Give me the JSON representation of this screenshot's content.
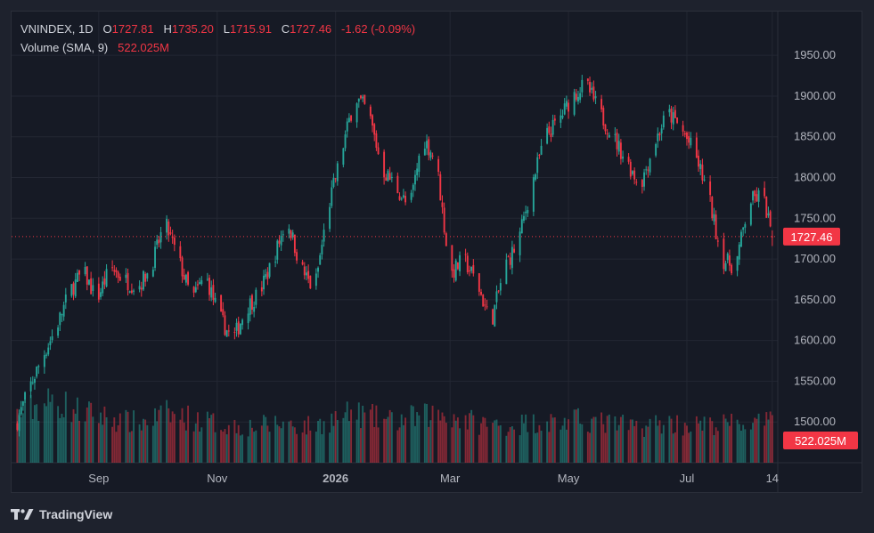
{
  "legend": {
    "symbol": "VNINDEX",
    "interval": "1D",
    "open_label": "O",
    "open": "1727.81",
    "high_label": "H",
    "high": "1735.20",
    "low_label": "L",
    "low": "1715.91",
    "close_label": "C",
    "close": "1727.46",
    "change": "-1.62 (-0.09%)",
    "volume_label": "Volume (SMA, 9)",
    "volume_value": "522.025M"
  },
  "footer": {
    "brand": "TradingView",
    "logo_icon": "tradingview-logo-icon"
  },
  "colors": {
    "up": "#26a69a",
    "down": "#f23645",
    "background": "#161a25",
    "text": "#d1d4dc"
  },
  "chart_data": {
    "type": "candlestick",
    "title": "",
    "xlabel": "",
    "ylabel": "",
    "ylim": [
      1450,
      1960
    ],
    "y_ticks": [
      1500,
      1550,
      1600,
      1650,
      1700,
      1750,
      1800,
      1850,
      1900,
      1950
    ],
    "y_tick_labels": [
      "1500.00",
      "1550.00",
      "1600.00",
      "1650.00",
      "1700.00",
      "1750.00",
      "1800.00",
      "1850.00",
      "1900.00",
      "1950.00"
    ],
    "x_ticks": [
      {
        "label": "Sep",
        "date": "2025-09-01"
      },
      {
        "label": "Nov",
        "date": "2025-11-01"
      },
      {
        "label": "2026",
        "date": "2026-01-01"
      },
      {
        "label": "Mar",
        "date": "2026-03-01"
      },
      {
        "label": "May",
        "date": "2026-05-01"
      },
      {
        "label": "Jul",
        "date": "2026-07-01"
      },
      {
        "label": "14",
        "date": "2026-08-14"
      }
    ],
    "last_price": 1727.46,
    "last_price_label": "1727.46",
    "last_volume_label": "522.025M",
    "grid": true,
    "series": [
      {
        "kind": "close",
        "points": [
          [
            "2025-07-20",
            1495
          ],
          [
            "2025-07-27",
            1540
          ],
          [
            "2025-08-03",
            1580
          ],
          [
            "2025-08-10",
            1615
          ],
          [
            "2025-08-17",
            1660
          ],
          [
            "2025-08-24",
            1685
          ],
          [
            "2025-08-31",
            1650
          ],
          [
            "2025-09-07",
            1690
          ],
          [
            "2025-09-14",
            1675
          ],
          [
            "2025-09-21",
            1665
          ],
          [
            "2025-09-28",
            1690
          ],
          [
            "2025-10-05",
            1745
          ],
          [
            "2025-10-12",
            1700
          ],
          [
            "2025-10-19",
            1650
          ],
          [
            "2025-10-26",
            1680
          ],
          [
            "2025-11-02",
            1630
          ],
          [
            "2025-11-09",
            1600
          ],
          [
            "2025-11-16",
            1640
          ],
          [
            "2025-11-23",
            1660
          ],
          [
            "2025-11-30",
            1700
          ],
          [
            "2025-12-07",
            1750
          ],
          [
            "2025-12-14",
            1690
          ],
          [
            "2025-12-21",
            1660
          ],
          [
            "2025-12-28",
            1760
          ],
          [
            "2026-01-04",
            1830
          ],
          [
            "2026-01-11",
            1900
          ],
          [
            "2026-01-18",
            1880
          ],
          [
            "2026-01-25",
            1810
          ],
          [
            "2026-02-01",
            1790
          ],
          [
            "2026-02-08",
            1760
          ],
          [
            "2026-02-15",
            1850
          ],
          [
            "2026-02-22",
            1820
          ],
          [
            "2026-03-01",
            1680
          ],
          [
            "2026-03-08",
            1700
          ],
          [
            "2026-03-15",
            1670
          ],
          [
            "2026-03-22",
            1620
          ],
          [
            "2026-03-29",
            1690
          ],
          [
            "2026-04-05",
            1720
          ],
          [
            "2026-04-12",
            1790
          ],
          [
            "2026-04-19",
            1850
          ],
          [
            "2026-04-26",
            1870
          ],
          [
            "2026-05-03",
            1900
          ],
          [
            "2026-05-10",
            1915
          ],
          [
            "2026-05-17",
            1880
          ],
          [
            "2026-05-24",
            1850
          ],
          [
            "2026-05-31",
            1820
          ],
          [
            "2026-06-07",
            1790
          ],
          [
            "2026-06-14",
            1840
          ],
          [
            "2026-06-21",
            1880
          ],
          [
            "2026-06-28",
            1860
          ],
          [
            "2026-07-05",
            1830
          ],
          [
            "2026-07-12",
            1780
          ],
          [
            "2026-07-19",
            1700
          ],
          [
            "2026-07-26",
            1690
          ],
          [
            "2026-08-02",
            1770
          ],
          [
            "2026-08-09",
            1780
          ],
          [
            "2026-08-14",
            1727.46
          ]
        ]
      },
      {
        "kind": "volume",
        "points": [
          [
            "2025-07-20",
            600
          ],
          [
            "2025-07-27",
            700
          ],
          [
            "2025-08-03",
            760
          ],
          [
            "2025-08-10",
            800
          ],
          [
            "2025-08-17",
            720
          ],
          [
            "2025-08-24",
            650
          ],
          [
            "2025-08-31",
            620
          ],
          [
            "2025-09-07",
            580
          ],
          [
            "2025-09-14",
            540
          ],
          [
            "2025-09-21",
            520
          ],
          [
            "2025-09-28",
            560
          ],
          [
            "2025-10-05",
            640
          ],
          [
            "2025-10-12",
            600
          ],
          [
            "2025-10-19",
            580
          ],
          [
            "2025-10-26",
            540
          ],
          [
            "2025-11-02",
            500
          ],
          [
            "2025-11-09",
            480
          ],
          [
            "2025-11-16",
            470
          ],
          [
            "2025-11-23",
            480
          ],
          [
            "2025-11-30",
            500
          ],
          [
            "2025-12-07",
            520
          ],
          [
            "2025-12-14",
            480
          ],
          [
            "2025-12-21",
            470
          ],
          [
            "2025-12-28",
            540
          ],
          [
            "2026-01-04",
            600
          ],
          [
            "2026-01-11",
            640
          ],
          [
            "2026-01-18",
            600
          ],
          [
            "2026-01-25",
            560
          ],
          [
            "2026-02-01",
            540
          ],
          [
            "2026-02-08",
            580
          ],
          [
            "2026-02-15",
            600
          ],
          [
            "2026-02-22",
            640
          ],
          [
            "2026-03-01",
            620
          ],
          [
            "2026-03-08",
            560
          ],
          [
            "2026-03-15",
            520
          ],
          [
            "2026-03-22",
            500
          ],
          [
            "2026-03-29",
            480
          ],
          [
            "2026-04-05",
            500
          ],
          [
            "2026-04-12",
            520
          ],
          [
            "2026-04-19",
            540
          ],
          [
            "2026-04-26",
            520
          ],
          [
            "2026-05-03",
            540
          ],
          [
            "2026-05-10",
            560
          ],
          [
            "2026-05-17",
            520
          ],
          [
            "2026-05-24",
            500
          ],
          [
            "2026-05-31",
            480
          ],
          [
            "2026-06-07",
            470
          ],
          [
            "2026-06-14",
            500
          ],
          [
            "2026-06-21",
            520
          ],
          [
            "2026-06-28",
            500
          ],
          [
            "2026-07-05",
            490
          ],
          [
            "2026-07-12",
            480
          ],
          [
            "2026-07-19",
            500
          ],
          [
            "2026-07-26",
            510
          ],
          [
            "2026-08-02",
            500
          ],
          [
            "2026-08-09",
            505
          ],
          [
            "2026-08-14",
            522
          ]
        ]
      }
    ]
  }
}
